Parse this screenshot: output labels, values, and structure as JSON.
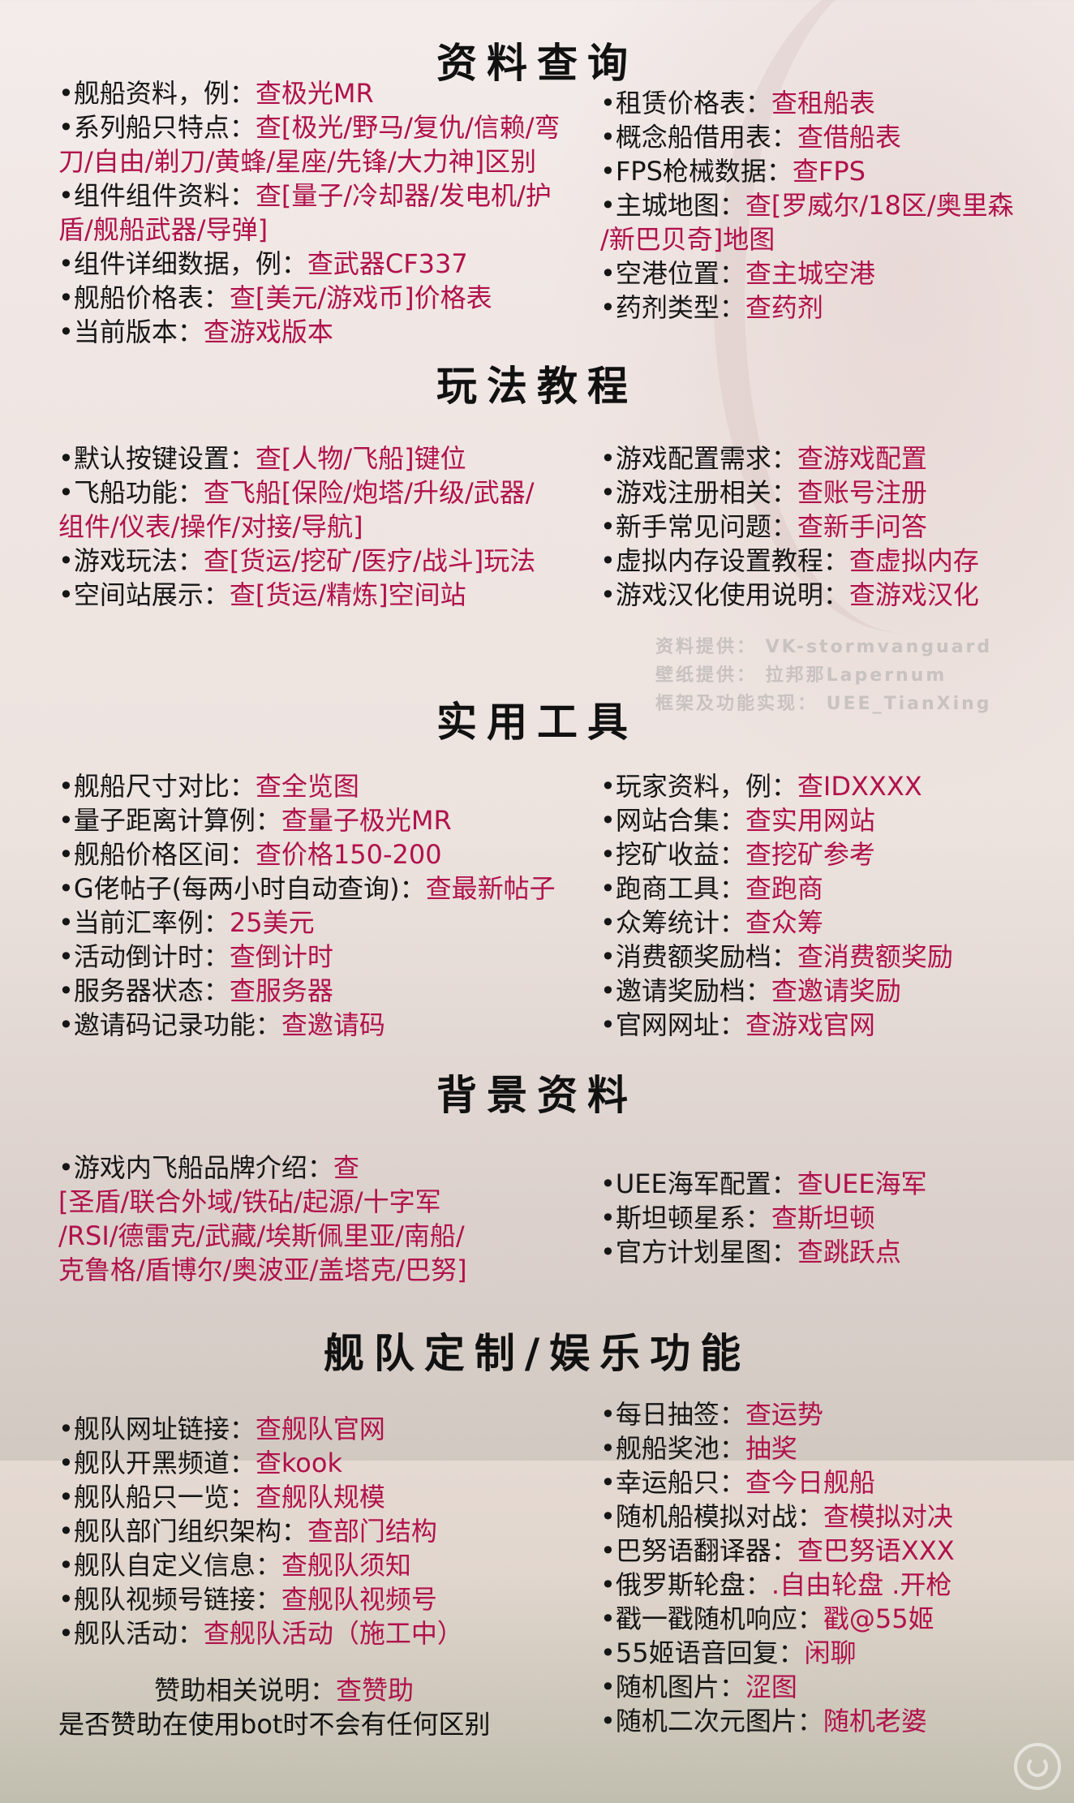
{
  "sections": {
    "s1": {
      "title": "资料查询",
      "left": [
        {
          "label": "•舰船资料，例：",
          "cmd": "查极光MR"
        },
        {
          "label": "•系列船只特点：",
          "cmd": "查[极光/野马/复仇/信赖/弯",
          "cont": "刀/自由/剃刀/黄蜂/星座/先锋/大力神]区别"
        },
        {
          "label": "•组件组件资料：",
          "cmd": "查[量子/冷却器/发电机/护",
          "cont": "盾/舰船武器/导弹]"
        },
        {
          "label": "•组件详细数据，例：",
          "cmd": "查武器CF337"
        },
        {
          "label": "•舰船价格表：",
          "cmd": "查[美元/游戏币]价格表"
        },
        {
          "label": "•当前版本：",
          "cmd": "查游戏版本"
        }
      ],
      "right": [
        {
          "label": "•租赁价格表：",
          "cmd": "查租船表"
        },
        {
          "label": "•概念船借用表：",
          "cmd": "查借船表"
        },
        {
          "label": "•FPS枪械数据：",
          "cmd": "查FPS"
        },
        {
          "label": "•主城地图：",
          "cmd": "查[罗威尔/18区/奥里森",
          "cont": "/新巴贝奇]地图"
        },
        {
          "label": "•空港位置：",
          "cmd": "查主城空港"
        },
        {
          "label": "•药剂类型：",
          "cmd": "查药剂"
        }
      ]
    },
    "s2": {
      "title": "玩法教程",
      "left": [
        {
          "label": "•默认按键设置：",
          "cmd": "查[人物/飞船]键位"
        },
        {
          "label": "•飞船功能：",
          "cmd": "查飞船[保险/炮塔/升级/武器/",
          "cont": "组件/仪表/操作/对接/导航]"
        },
        {
          "label": "•游戏玩法：",
          "cmd": "查[货运/挖矿/医疗/战斗]玩法"
        },
        {
          "label": "•空间站展示：",
          "cmd": "查[货运/精炼]空间站"
        }
      ],
      "right": [
        {
          "label": "•游戏配置需求：",
          "cmd": "查游戏配置"
        },
        {
          "label": "•游戏注册相关：",
          "cmd": "查账号注册"
        },
        {
          "label": "•新手常见问题：",
          "cmd": "查新手问答"
        },
        {
          "label": "•虚拟内存设置教程：",
          "cmd": "查虚拟内存"
        },
        {
          "label": "•游戏汉化使用说明：",
          "cmd": "查游戏汉化"
        }
      ]
    },
    "s3": {
      "title": "实用工具",
      "left": [
        {
          "label": "•舰船尺寸对比：",
          "cmd": "查全览图"
        },
        {
          "label": "•量子距离计算例：",
          "cmd": "查量子极光MR"
        },
        {
          "label": "•舰船价格区间：",
          "cmd": "查价格150-200"
        },
        {
          "label": "•G佬帖子(每两小时自动查询)：",
          "cmd": "查最新帖子"
        },
        {
          "label": "•当前汇率例：",
          "cmd": "25美元"
        },
        {
          "label": "•活动倒计时：",
          "cmd": "查倒计时"
        },
        {
          "label": "•服务器状态：",
          "cmd": "查服务器"
        },
        {
          "label": "•邀请码记录功能：",
          "cmd": "查邀请码"
        }
      ],
      "right": [
        {
          "label": "•玩家资料，例：",
          "cmd": "查IDXXXX"
        },
        {
          "label": "•网站合集：",
          "cmd": "查实用网站"
        },
        {
          "label": "•挖矿收益：",
          "cmd": "查挖矿参考"
        },
        {
          "label": "•跑商工具：",
          "cmd": "查跑商"
        },
        {
          "label": "•众筹统计：",
          "cmd": "查众筹"
        },
        {
          "label": "•消费额奖励档：",
          "cmd": "查消费额奖励"
        },
        {
          "label": "•邀请奖励档：",
          "cmd": "查邀请奖励"
        },
        {
          "label": "•官网网址：",
          "cmd": "查游戏官网"
        }
      ]
    },
    "s4": {
      "title": "背景资料",
      "left": [
        {
          "label": "•游戏内飞船品牌介绍：",
          "cmd": "查",
          "cont": "[圣盾/联合外域/铁砧/起源/十字军",
          "cont2": "/RSI/德雷克/武藏/埃斯佩里亚/南船/",
          "cont3": "克鲁格/盾博尔/奥波亚/盖塔克/巴努]"
        }
      ],
      "right": [
        {
          "label": "•UEE海军配置：",
          "cmd": "查UEE海军"
        },
        {
          "label": "•斯坦顿星系：",
          "cmd": "查斯坦顿"
        },
        {
          "label": "•官方计划星图：",
          "cmd": "查跳跃点"
        }
      ]
    },
    "s5": {
      "title": "舰队定制/娱乐功能",
      "left": [
        {
          "label": "•舰队网址链接：",
          "cmd": "查舰队官网"
        },
        {
          "label": "•舰队开黑频道：",
          "cmd": "查kook"
        },
        {
          "label": "•舰队船只一览：",
          "cmd": "查舰队规模"
        },
        {
          "label": "•舰队部门组织架构：",
          "cmd": "查部门结构"
        },
        {
          "label": "•舰队自定义信息：",
          "cmd": "查舰队须知"
        },
        {
          "label": "•舰队视频号链接：",
          "cmd": "查舰队视频号"
        },
        {
          "label": "•舰队活动：",
          "cmd": "查舰队活动（施工中）"
        }
      ],
      "right": [
        {
          "label": "•每日抽签：",
          "cmd": "查运势"
        },
        {
          "label": "•舰船奖池：",
          "cmd": "抽奖"
        },
        {
          "label": "•幸运船只：",
          "cmd": "查今日舰船"
        },
        {
          "label": "•随机船模拟对战：",
          "cmd": "查模拟对决"
        },
        {
          "label": "•巴努语翻译器：",
          "cmd": "查巴努语XXX"
        },
        {
          "label": "•俄罗斯轮盘：",
          "cmd": ".自由轮盘  .开枪"
        },
        {
          "label": "•戳一戳随机响应：",
          "cmd": "戳@55姬"
        },
        {
          "label": "•55姬语音回复：",
          "cmd": "闲聊"
        },
        {
          "label": "•随机图片：",
          "cmd": "涩图"
        },
        {
          "label": "•随机二次元图片：",
          "cmd": "随机老婆"
        }
      ]
    }
  },
  "credits": {
    "line1": "资料提供： VK-stormvanguard",
    "line2": "壁纸提供： 拉邦那Lapernum",
    "line3": "框架及功能实现： UEE_TianXing"
  },
  "sponsor": {
    "label": "赞助相关说明：",
    "cmd": "查赞助",
    "note": "是否赞助在使用bot时不会有任何区别"
  },
  "colors": {
    "command": "#b0124c",
    "text": "#161616"
  }
}
